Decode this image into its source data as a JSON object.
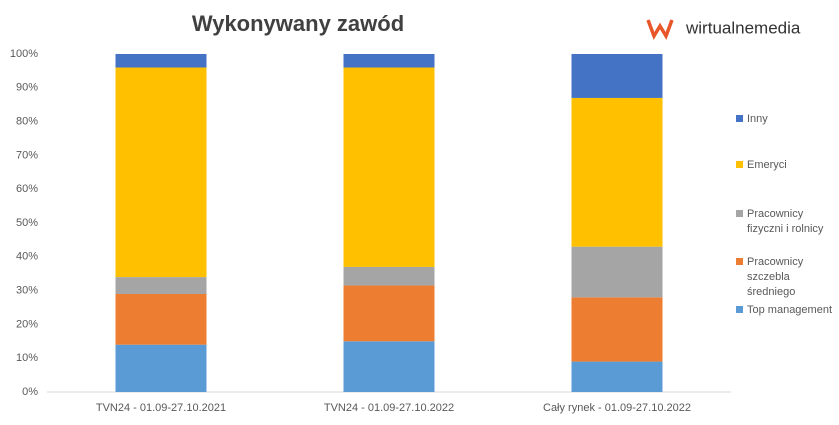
{
  "chart_data": {
    "type": "stacked_bar",
    "title": "Wykonywany zawód",
    "logo_text": "wirtualnemedia",
    "categories": [
      "TVN24 - 01.09-27.10.2021",
      "TVN24 - 01.09-27.10.2022",
      "Cały rynek - 01.09-27.10.2022"
    ],
    "series": [
      {
        "name": "Top management",
        "color": "#5b9bd5",
        "values": [
          14,
          15,
          9
        ]
      },
      {
        "name": "Pracownicy szczebla średniego",
        "color": "#ed7d31",
        "values": [
          15,
          16.5,
          19
        ]
      },
      {
        "name": "Pracownicy fizyczni i rolnicy",
        "color": "#a5a5a5",
        "values": [
          5,
          5.5,
          15
        ]
      },
      {
        "name": "Emeryci",
        "color": "#ffc000",
        "values": [
          62,
          59,
          44
        ]
      },
      {
        "name": "Inny",
        "color": "#4472c4",
        "values": [
          4,
          4,
          13
        ]
      }
    ],
    "ylim": [
      0,
      100
    ],
    "yticks": [
      {
        "value": 0,
        "label": "0%"
      },
      {
        "value": 10,
        "label": "10%"
      },
      {
        "value": 20,
        "label": "20%"
      },
      {
        "value": 30,
        "label": "30%"
      },
      {
        "value": 40,
        "label": "40%"
      },
      {
        "value": 50,
        "label": "50%"
      },
      {
        "value": 60,
        "label": "60%"
      },
      {
        "value": 70,
        "label": "70%"
      },
      {
        "value": 80,
        "label": "80%"
      },
      {
        "value": 90,
        "label": "90%"
      },
      {
        "value": 100,
        "label": "100%"
      }
    ],
    "legend": "right"
  }
}
